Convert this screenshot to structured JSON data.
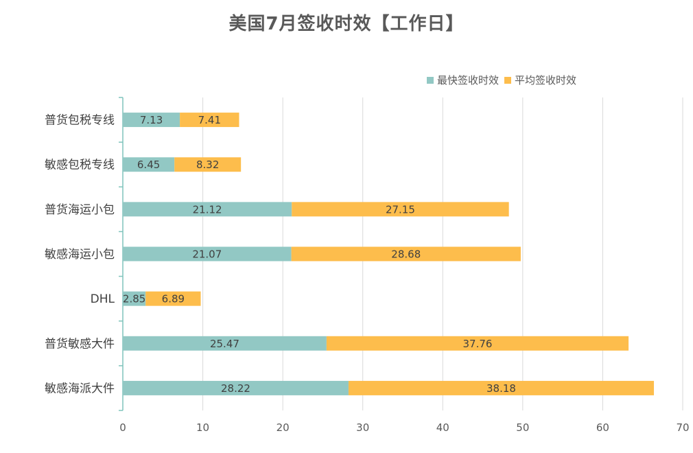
{
  "chart_data": {
    "type": "bar",
    "orientation": "horizontal",
    "stacked": true,
    "title": "美国7月签收时效【工作日】",
    "categories": [
      "普货包税专线",
      "敏感包税专线",
      "普货海运小包",
      "敏感海运小包",
      "DHL",
      "普货敏感大件",
      "敏感海派大件"
    ],
    "series": [
      {
        "name": "最快签收时效",
        "color": "#92c8c4",
        "values": [
          7.13,
          6.45,
          21.12,
          21.07,
          2.85,
          25.47,
          28.22
        ]
      },
      {
        "name": "平均签收时效",
        "color": "#fdbd4c",
        "values": [
          7.41,
          8.32,
          27.15,
          28.68,
          6.89,
          37.76,
          38.18
        ]
      }
    ],
    "xlim": [
      0,
      70
    ],
    "xticks": [
      "0",
      "10",
      "20",
      "30",
      "40",
      "50",
      "60",
      "70"
    ],
    "grid": true,
    "legend_position": "top-right",
    "axis_color": "#7fc4bc"
  }
}
